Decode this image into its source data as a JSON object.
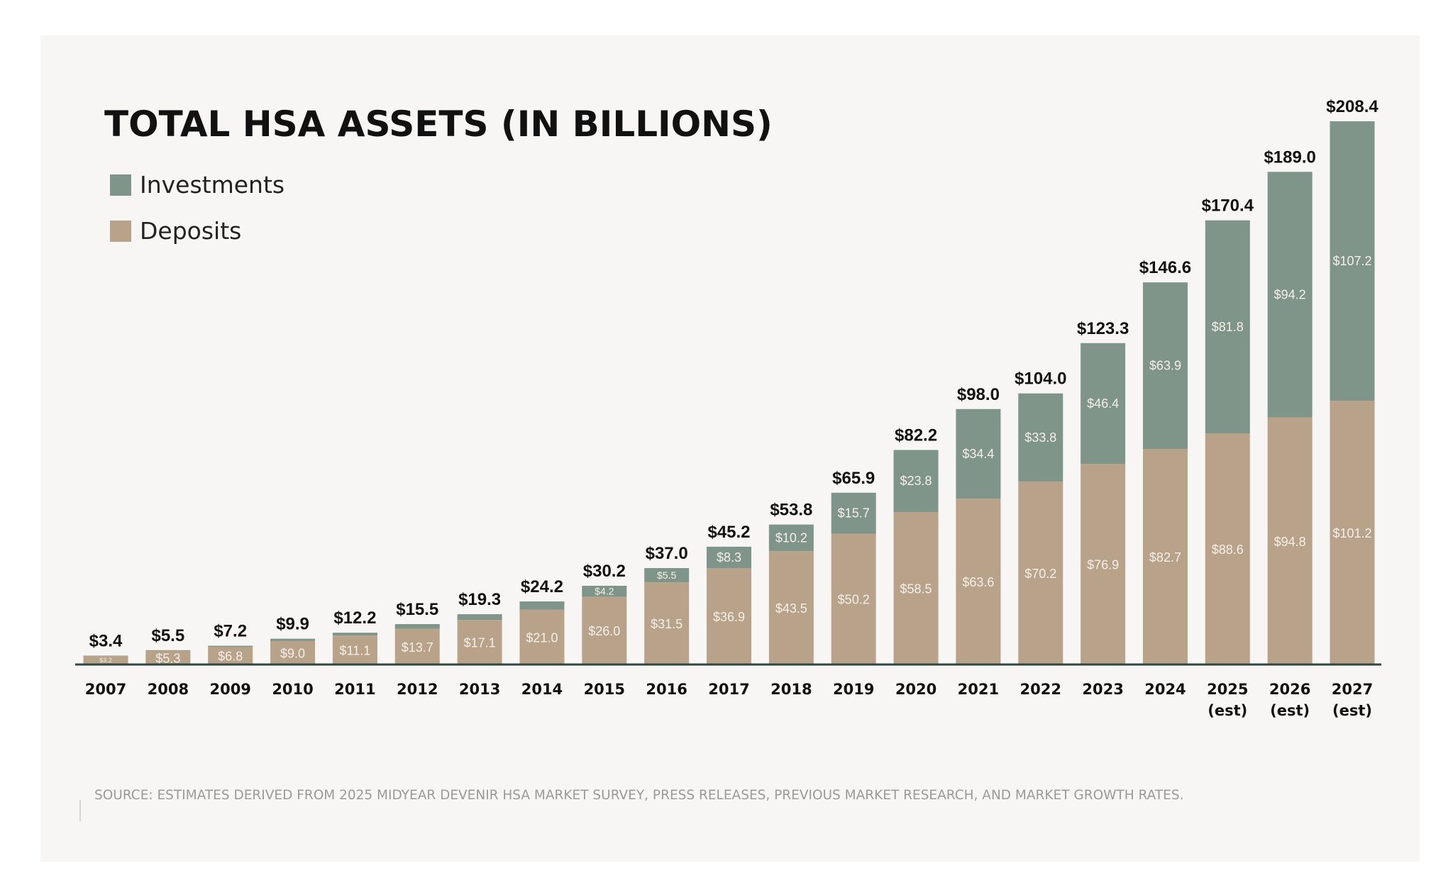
{
  "colors": {
    "investments": "#80958a",
    "deposits": "#b9a28a",
    "axis": "#2f4740",
    "background": "#f8f6f4"
  },
  "chart_data": {
    "type": "bar",
    "stacked": true,
    "title": "TOTAL HSA ASSETS (IN BILLIONS)",
    "categories": [
      "2007",
      "2008",
      "2009",
      "2010",
      "2011",
      "2012",
      "2013",
      "2014",
      "2015",
      "2016",
      "2017",
      "2018",
      "2019",
      "2020",
      "2021",
      "2022",
      "2023",
      "2024",
      "2025 (est)",
      "2026 (est)",
      "2027 (est)"
    ],
    "series": [
      {
        "name": "Deposits",
        "color": "#b9a28a",
        "values": [
          3.2,
          5.3,
          6.8,
          9.0,
          11.1,
          13.7,
          17.1,
          21.0,
          26.0,
          31.5,
          36.9,
          43.5,
          50.2,
          58.5,
          63.6,
          70.2,
          76.9,
          82.7,
          88.6,
          94.8,
          101.2
        ]
      },
      {
        "name": "Investments",
        "color": "#80958a",
        "values": [
          0.2,
          0.2,
          0.4,
          0.9,
          1.1,
          1.8,
          2.2,
          3.2,
          4.2,
          5.5,
          8.3,
          10.2,
          15.7,
          23.8,
          34.4,
          33.8,
          46.4,
          63.9,
          81.8,
          94.2,
          107.2
        ]
      }
    ],
    "totals": [
      3.4,
      5.5,
      7.2,
      9.9,
      12.2,
      15.5,
      19.3,
      24.2,
      30.2,
      37.0,
      45.2,
      53.8,
      65.9,
      82.2,
      98.0,
      104.0,
      123.3,
      146.6,
      170.4,
      189.0,
      208.4
    ],
    "total_labels": [
      "$3.4",
      "$5.5",
      "$7.2",
      "$9.9",
      "$12.2",
      "$15.5",
      "$19.3",
      "$24.2",
      "$30.2",
      "$37.0",
      "$45.2",
      "$53.8",
      "$65.9",
      "$82.2",
      "$98.0",
      "$104.0",
      "$123.3",
      "$146.6",
      "$170.4",
      "$189.0",
      "$208.4"
    ],
    "deposit_labels": [
      "$3.2",
      "$5.3",
      "$6.8",
      "$9.0",
      "$11.1",
      "$13.7",
      "$17.1",
      "$21.0",
      "$26.0",
      "$31.5",
      "$36.9",
      "$43.5",
      "$50.2",
      "$58.5",
      "$63.6",
      "$70.2",
      "$76.9",
      "$82.7",
      "$88.6",
      "$94.8",
      "$101.2"
    ],
    "investment_labels": [
      "",
      "",
      "",
      "",
      "",
      "",
      "",
      "",
      "$4.2",
      "$5.5",
      "$8.3",
      "$10.2",
      "$15.7",
      "$23.8",
      "$34.4",
      "$33.8",
      "$46.4",
      "$63.9",
      "$81.8",
      "$94.2",
      "$107.2"
    ],
    "ylim": [
      0,
      208.4
    ],
    "grid": false,
    "legend": "top-left",
    "xlabel": "",
    "ylabel": ""
  },
  "source": "SOURCE: ESTIMATES DERIVED FROM 2025 MIDYEAR DEVENIR HSA MARKET SURVEY, PRESS RELEASES, PREVIOUS MARKET RESEARCH, AND MARKET GROWTH RATES."
}
